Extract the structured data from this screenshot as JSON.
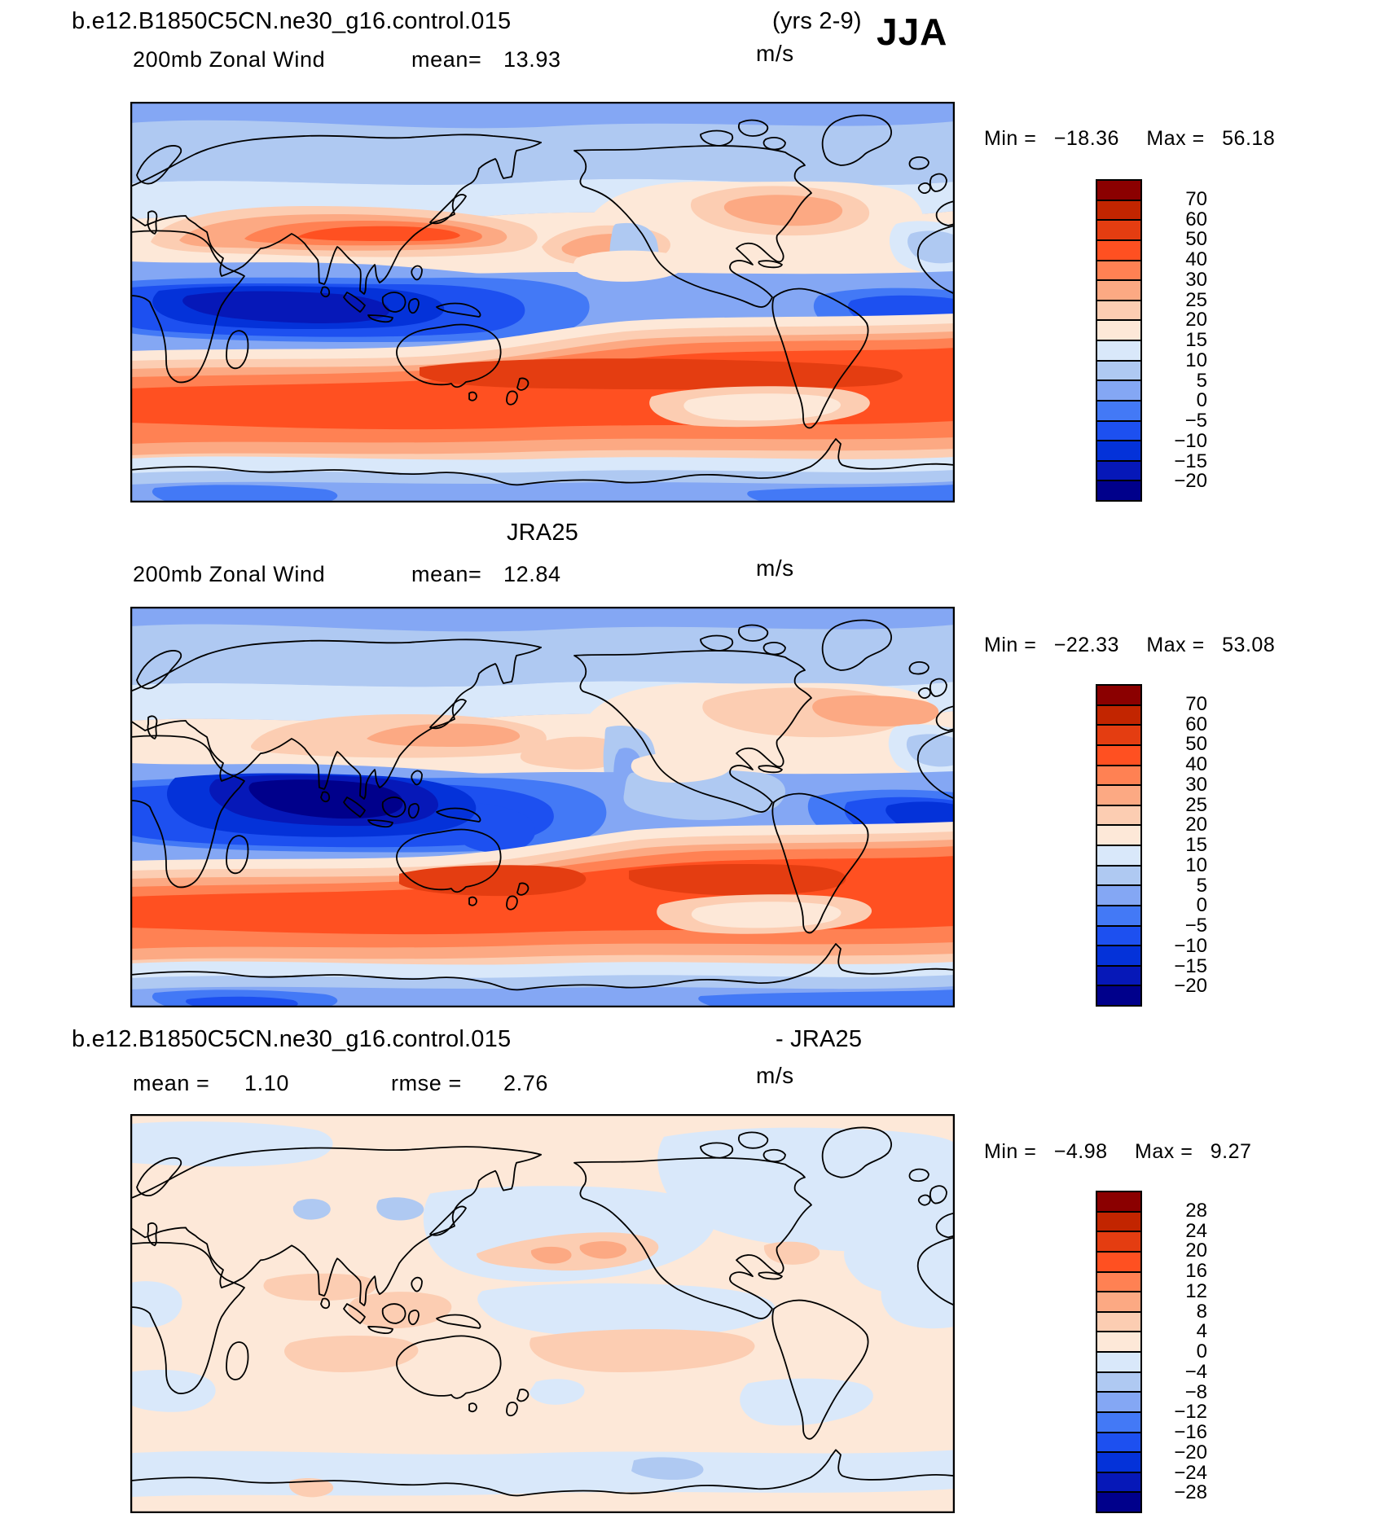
{
  "season": "JJA",
  "palette16": [
    "#8B0000",
    "#C22500",
    "#E43D11",
    "#FF5021",
    "#FF8153",
    "#FCA983",
    "#FCCDB2",
    "#FDE8D8",
    "#D9E8FA",
    "#AFC9F2",
    "#84A7F4",
    "#4379F6",
    "#1D50F0",
    "#0432D9",
    "#0618B8",
    "#00008B"
  ],
  "panels": [
    {
      "title_left": "b.e12.B1850C5CN.ne30_g16.control.015",
      "title_right": "(yrs 2-9)",
      "subtitle": "200mb Zonal Wind",
      "mean_label": "mean=",
      "mean_value": "13.93",
      "units": "m/s",
      "min_label": "Min  =",
      "min_value": "−18.36",
      "max_label": "Max  =",
      "max_value": "56.18",
      "colorbar_labels": [
        "70",
        "60",
        "50",
        "40",
        "30",
        "25",
        "20",
        "15",
        "10",
        "5",
        "0",
        "−5",
        "−10",
        "−15",
        "−20"
      ]
    },
    {
      "title": "JRA25",
      "subtitle": "200mb Zonal Wind",
      "mean_label": "mean=",
      "mean_value": "12.84",
      "units": "m/s",
      "min_label": "Min  =",
      "min_value": "−22.33",
      "max_label": "Max  =",
      "max_value": "53.08",
      "colorbar_labels": [
        "70",
        "60",
        "50",
        "40",
        "30",
        "25",
        "20",
        "15",
        "10",
        "5",
        "0",
        "−5",
        "−10",
        "−15",
        "−20"
      ]
    },
    {
      "title_left": "b.e12.B1850C5CN.ne30_g16.control.015",
      "title_right": "- JRA25",
      "mean_label": "mean  =",
      "mean_value": "1.10",
      "rmse_label": "rmse  =",
      "rmse_value": "2.76",
      "units": "m/s",
      "min_label": "Min  =",
      "min_value": "−4.98",
      "max_label": "Max  =",
      "max_value": "9.27",
      "colorbar_labels": [
        "28",
        "24",
        "20",
        "16",
        "12",
        "8",
        "4",
        "0",
        "−4",
        "−8",
        "−12",
        "−16",
        "−20",
        "−24",
        "−28"
      ]
    }
  ],
  "chart_data": [
    {
      "type": "heatmap",
      "title": "b.e12.B1850C5CN.ne30_g16.control.015 (yrs 2-9)",
      "subtitle": "200mb Zonal Wind",
      "season": "JJA",
      "units": "m/s",
      "mean": 13.93,
      "min": -18.36,
      "max": 56.18,
      "contour_levels": [
        -20,
        -15,
        -10,
        -5,
        0,
        5,
        10,
        15,
        20,
        25,
        30,
        40,
        50,
        60,
        70
      ],
      "projection": "cylindrical equidistant, lon 0-360E, lat 90N-90S",
      "legend_position": "right"
    },
    {
      "type": "heatmap",
      "title": "JRA25",
      "subtitle": "200mb Zonal Wind",
      "season": "JJA",
      "units": "m/s",
      "mean": 12.84,
      "min": -22.33,
      "max": 53.08,
      "contour_levels": [
        -20,
        -15,
        -10,
        -5,
        0,
        5,
        10,
        15,
        20,
        25,
        30,
        40,
        50,
        60,
        70
      ],
      "projection": "cylindrical equidistant, lon 0-360E, lat 90N-90S",
      "legend_position": "right"
    },
    {
      "type": "heatmap",
      "title": "b.e12.B1850C5CN.ne30_g16.control.015 - JRA25",
      "subtitle": "difference of 200mb Zonal Wind",
      "season": "JJA",
      "units": "m/s",
      "mean": 1.1,
      "rmse": 2.76,
      "min": -4.98,
      "max": 9.27,
      "contour_levels": [
        -28,
        -24,
        -20,
        -16,
        -12,
        -8,
        -4,
        0,
        4,
        8,
        12,
        16,
        20,
        24,
        28
      ],
      "projection": "cylindrical equidistant, lon 0-360E, lat 90N-90S",
      "legend_position": "right"
    }
  ]
}
